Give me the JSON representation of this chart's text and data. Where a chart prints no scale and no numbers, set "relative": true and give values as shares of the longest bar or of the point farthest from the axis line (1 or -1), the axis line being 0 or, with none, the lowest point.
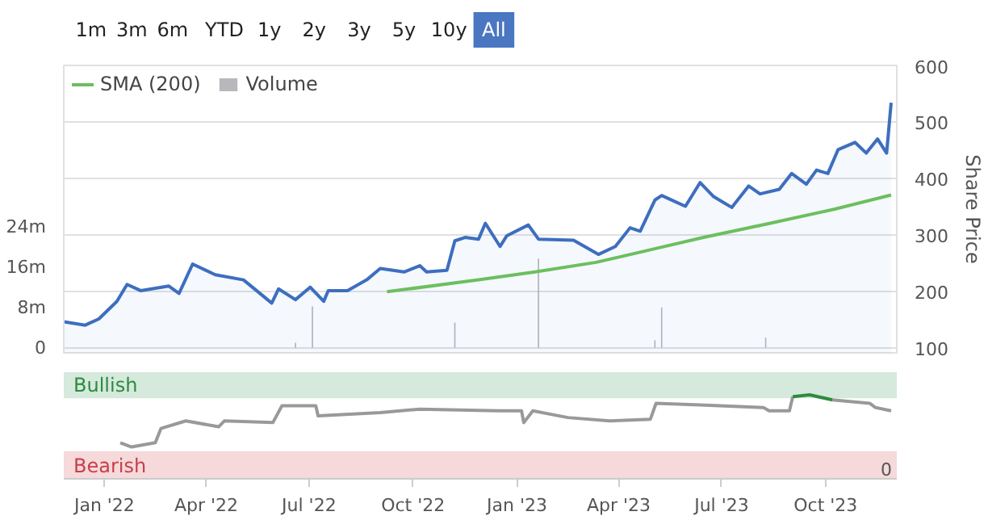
{
  "chart_data": [
    {
      "type": "area",
      "ylabel": "Share Price",
      "annotations": [
        "1m",
        "3m",
        "6m",
        "YTD",
        "1y",
        "2y",
        "3y",
        "5y",
        "10y",
        "All"
      ],
      "xlim": [
        "2021-11-26",
        "2023-12-03"
      ],
      "ylim": [
        92,
        600
      ],
      "yticks": [
        100,
        200,
        300,
        400,
        500,
        600
      ],
      "y2lim": [
        -1,
        56
      ],
      "y2ticks": [
        0,
        {
          "value": 8,
          "label": "8m"
        },
        {
          "value": 16,
          "label": "16m"
        },
        {
          "value": 24,
          "label": "24m"
        }
      ],
      "grid": "y",
      "legend": "top left",
      "tick_labels": "y",
      "series": [
        {
          "type": "area",
          "color": "#3d6ebf",
          "x": [
            "2021-11-26",
            "2021-12-15",
            "2021-12-27",
            "2022-01-12",
            "2022-01-21",
            "2022-02-02",
            "2022-02-27",
            "2022-03-08",
            "2022-03-20",
            "2022-04-09",
            "2022-05-04",
            "2022-05-29",
            "2022-06-04",
            "2022-06-19",
            "2022-07-02",
            "2022-07-14",
            "2022-07-18",
            "2022-08-04",
            "2022-08-21",
            "2022-09-02",
            "2022-09-23",
            "2022-10-07",
            "2022-10-13",
            "2022-10-31",
            "2022-11-07",
            "2022-11-16",
            "2022-11-28",
            "2022-12-04",
            "2022-12-17",
            "2022-12-23",
            "2023-01-11",
            "2023-01-20",
            "2023-02-20",
            "2023-03-14",
            "2023-03-29",
            "2023-04-11",
            "2023-04-20",
            "2023-05-03",
            "2023-05-09",
            "2023-05-30",
            "2023-06-12",
            "2023-06-24",
            "2023-07-10",
            "2023-07-25",
            "2023-08-04",
            "2023-08-21",
            "2023-09-01",
            "2023-09-14",
            "2023-09-23",
            "2023-10-03",
            "2023-10-12",
            "2023-10-27",
            "2023-11-06",
            "2023-11-16",
            "2023-11-24",
            "2023-11-28"
          ],
          "values": [
            147,
            141,
            152,
            183,
            213,
            202,
            210,
            197,
            249,
            230,
            221,
            180,
            205,
            186,
            208,
            183,
            202,
            202,
            221,
            241,
            235,
            246,
            235,
            238,
            290,
            296,
            293,
            321,
            280,
            299,
            318,
            293,
            291,
            266,
            280,
            313,
            307,
            362,
            370,
            351,
            393,
            368,
            349,
            387,
            373,
            381,
            409,
            390,
            415,
            409,
            451,
            464,
            445,
            470,
            445,
            534
          ]
        },
        {
          "type": "line",
          "name": "SMA (200)",
          "color": "#6cbf5f",
          "x": [
            "2022-09-08",
            "2022-11-28",
            "2023-01-17",
            "2023-03-12",
            "2023-05-05",
            "2023-06-15",
            "2023-08-13",
            "2023-10-09",
            "2023-11-28"
          ],
          "values": [
            200,
            221,
            235,
            252,
            277,
            296,
            321,
            346,
            371
          ]
        },
        {
          "type": "bar",
          "name": "Volume",
          "axis": "y2",
          "color": "#b8b8bc",
          "x": [
            "2022-06-19",
            "2022-07-04",
            "2022-11-07",
            "2023-01-20",
            "2023-05-03",
            "2023-05-09",
            "2023-08-09"
          ],
          "values": [
            1,
            8.2,
            5,
            17.7,
            1.5,
            8,
            2
          ]
        }
      ]
    },
    {
      "type": "line",
      "relative": true,
      "xlim": [
        "2021-11-26",
        "2023-12-03"
      ],
      "xticks": [
        {
          "value": "2022-01-01",
          "label": "Jan '22"
        },
        {
          "value": "2022-04-01",
          "label": "Apr '22"
        },
        {
          "value": "2022-07-01",
          "label": "Jul '22"
        },
        {
          "value": "2022-10-01",
          "label": "Oct '22"
        },
        {
          "value": "2023-01-01",
          "label": "Jan '23"
        },
        {
          "value": "2023-04-01",
          "label": "Apr '23"
        },
        {
          "value": "2023-07-01",
          "label": "Jul '23"
        },
        {
          "value": "2023-10-01",
          "label": "Oct '23"
        }
      ],
      "tick_labels": "x",
      "annotations": [
        "0"
      ],
      "bands": [
        {
          "axis": "y",
          "from": 0.96,
          "to": 1.27,
          "label": "Bullish",
          "color": "#d5e9dd"
        },
        {
          "axis": "y",
          "from": 0,
          "to": 0.33,
          "label": "Bearish",
          "color": "#f5d9db"
        }
      ],
      "series": [
        {
          "color": "#999999",
          "x": [
            "2022-01-15",
            "2022-01-25",
            "2022-02-15",
            "2022-02-20",
            "2022-03-14",
            "2022-04-12",
            "2022-04-17",
            "2022-05-30",
            "2022-06-07",
            "2022-07-07",
            "2022-07-09",
            "2022-09-02",
            "2022-10-07",
            "2022-12-16",
            "2023-01-05",
            "2023-01-07",
            "2023-01-15",
            "2023-02-15",
            "2023-03-24",
            "2023-04-29",
            "2023-05-04",
            "2023-06-12",
            "2023-08-07",
            "2023-08-12",
            "2023-08-30",
            "2023-09-02",
            "2023-09-19",
            "2023-10-07",
            "2023-11-09",
            "2023-11-14",
            "2023-11-28"
          ],
          "values": [
            0.43,
            0.38,
            0.43,
            0.6,
            0.69,
            0.62,
            0.69,
            0.67,
            0.87,
            0.87,
            0.75,
            0.79,
            0.83,
            0.81,
            0.81,
            0.67,
            0.81,
            0.73,
            0.69,
            0.71,
            0.9,
            0.88,
            0.85,
            0.81,
            0.81,
            0.98,
            null,
            0.94,
            0.9,
            0.85,
            0.81
          ]
        },
        {
          "color": "#2e8b3c",
          "x": [
            "2023-09-02",
            "2023-09-17",
            "2023-10-07"
          ],
          "values": [
            0.98,
            1.0,
            0.94
          ]
        }
      ]
    }
  ]
}
